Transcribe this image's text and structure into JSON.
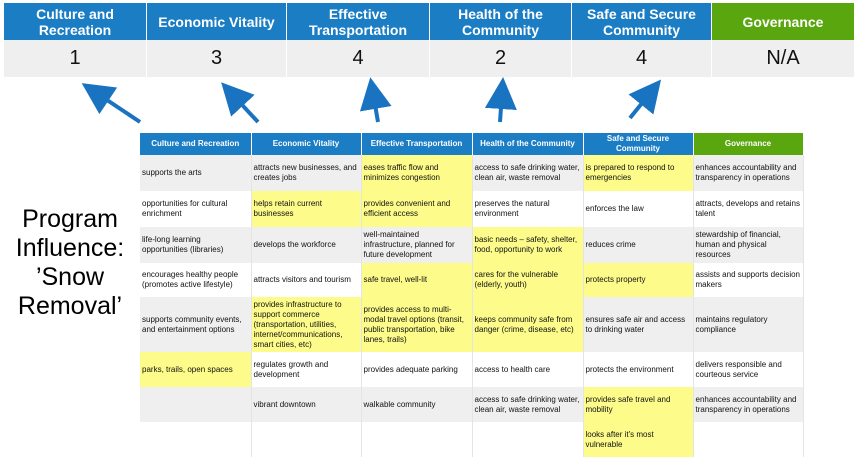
{
  "categories": [
    "Culture and Recreation",
    "Economic Vitality",
    "Effective Transportation",
    "Health of the Community",
    "Safe and Secure Community",
    "Governance"
  ],
  "scores": [
    "1",
    "3",
    "4",
    "2",
    "4",
    "N/A"
  ],
  "side_label": [
    "Program",
    "Influence:",
    "’Snow",
    "Removal’"
  ],
  "colors": {
    "header_blue": "#1b7dc4",
    "governance_green": "#5aa60e",
    "highlight_yellow": "#fdfc8a",
    "arrow_blue": "#1a73c0"
  },
  "table": {
    "headers": [
      "Culture and Recreation",
      "Economic Vitality",
      "Effective Transportation",
      "Health of the Community",
      "Safe and Secure Community",
      "Governance"
    ],
    "rows": [
      [
        {
          "t": "supports the arts"
        },
        {
          "t": "attracts new businesses, and creates jobs"
        },
        {
          "t": "eases traffic flow and minimizes congestion",
          "h": true
        },
        {
          "t": "access to safe drinking water, clean air, waste removal"
        },
        {
          "t": "is prepared to respond to emergencies",
          "h": true
        },
        {
          "t": "enhances accountability and transparency in operations"
        }
      ],
      [
        {
          "t": "opportunities for cultural enrichment"
        },
        {
          "t": "helps retain current businesses",
          "h": true
        },
        {
          "t": "provides convenient and efficient access",
          "h": true
        },
        {
          "t": "preserves the natural environment"
        },
        {
          "t": "enforces the law"
        },
        {
          "t": "attracts, develops and retains talent"
        }
      ],
      [
        {
          "t": "life-long learning opportunities (libraries)"
        },
        {
          "t": "develops the workforce"
        },
        {
          "t": "well-maintained infrastructure, planned for future development"
        },
        {
          "t": "basic needs – safety, shelter, food, opportunity to work",
          "h": true
        },
        {
          "t": "reduces crime"
        },
        {
          "t": "stewardship of financial, human and physical resources"
        }
      ],
      [
        {
          "t": "encourages healthy people (promotes active lifestyle)"
        },
        {
          "t": "attracts visitors and tourism"
        },
        {
          "t": "safe travel, well-lit",
          "h": true
        },
        {
          "t": "cares for the vulnerable (elderly, youth)",
          "h": true
        },
        {
          "t": "protects property",
          "h": true
        },
        {
          "t": "assists and supports decision makers"
        }
      ],
      [
        {
          "t": "supports community events, and entertainment options"
        },
        {
          "t": "provides infrastructure to support commerce (transportation, utilities, internet/communications, smart cities, etc)",
          "h": true
        },
        {
          "t": "provides access to multi-modal travel options (transit, public transportation, bike lanes, trails)",
          "h": true
        },
        {
          "t": "keeps community safe from danger (crime, disease, etc)",
          "h": true
        },
        {
          "t": "ensures safe air and access to drinking water"
        },
        {
          "t": "maintains regulatory compliance"
        }
      ],
      [
        {
          "t": "parks, trails, open spaces",
          "h": true
        },
        {
          "t": "regulates growth and development"
        },
        {
          "t": "provides adequate parking"
        },
        {
          "t": "access to health care"
        },
        {
          "t": "protects the environment"
        },
        {
          "t": "delivers responsible and courteous service"
        }
      ],
      [
        {
          "t": ""
        },
        {
          "t": "vibrant downtown"
        },
        {
          "t": "walkable community"
        },
        {
          "t": "access to safe drinking water, clean air, waste removal"
        },
        {
          "t": "provides safe travel and mobility",
          "h": true
        },
        {
          "t": "enhances accountability and transparency in operations"
        }
      ],
      [
        {
          "t": ""
        },
        {
          "t": ""
        },
        {
          "t": ""
        },
        {
          "t": ""
        },
        {
          "t": "looks after it's most vulnerable",
          "h": true
        },
        {
          "t": ""
        }
      ]
    ]
  }
}
